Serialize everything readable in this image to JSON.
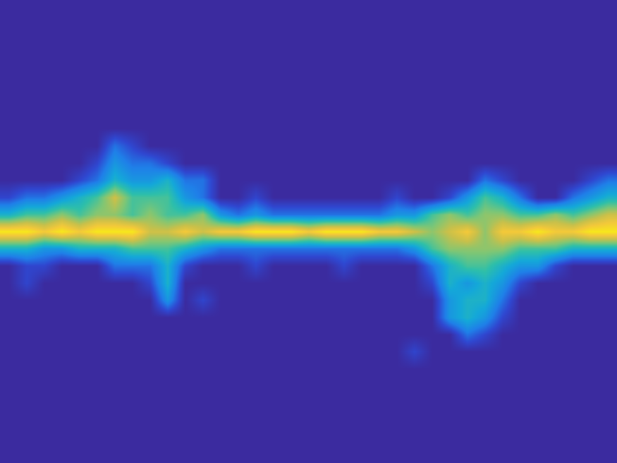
{
  "chart_data": {
    "type": "heatmap",
    "tick_labels": false,
    "zlim": [
      0,
      9
    ],
    "cells": [
      [
        0,
        0,
        0,
        0,
        0,
        0,
        0,
        0,
        0,
        0,
        0,
        0,
        0,
        0,
        0,
        0,
        0,
        0,
        0,
        0,
        0,
        0,
        0,
        0,
        0,
        0,
        0,
        0,
        0,
        0,
        0,
        0,
        0,
        0,
        0
      ],
      [
        0,
        0,
        0,
        0,
        0,
        0,
        0,
        0,
        0,
        0,
        0,
        0,
        0,
        0,
        0,
        0,
        0,
        0,
        0,
        0,
        0,
        0,
        0,
        0,
        0,
        0,
        0,
        0,
        0,
        0,
        0,
        0,
        0,
        0,
        0
      ],
      [
        0,
        0,
        0,
        0,
        0,
        0,
        0,
        0,
        0,
        0,
        0,
        0,
        0,
        0,
        0,
        0,
        0,
        0,
        0,
        0,
        0,
        0,
        0,
        0,
        0,
        0,
        0,
        0,
        0,
        0,
        0,
        0,
        0,
        0,
        0
      ],
      [
        0,
        0,
        0,
        0,
        0,
        0,
        0,
        0,
        0,
        0,
        0,
        0,
        0,
        0,
        0,
        0,
        0,
        0,
        0,
        0,
        0,
        0,
        0,
        0,
        0,
        0,
        0,
        0,
        0,
        0,
        0,
        0,
        0,
        0,
        0
      ],
      [
        0,
        0,
        0,
        0,
        0,
        0,
        0,
        0,
        0,
        0,
        0,
        0,
        0,
        0,
        0,
        0,
        0,
        0,
        0,
        0,
        0,
        0,
        0,
        0,
        0,
        0,
        0,
        0,
        0,
        0,
        0,
        0,
        0,
        0,
        0
      ],
      [
        0,
        0,
        0,
        0,
        0,
        0,
        0,
        0,
        0,
        0,
        0,
        0,
        0,
        0,
        0,
        0,
        0,
        0,
        0,
        0,
        0,
        0,
        0,
        0,
        0,
        0,
        0,
        0,
        0,
        0,
        0,
        0,
        0,
        0,
        0
      ],
      [
        0,
        0,
        0,
        0,
        0,
        0,
        0,
        0,
        0,
        0,
        0,
        0,
        0,
        0,
        0,
        0,
        0,
        0,
        0,
        0,
        0,
        0,
        0,
        0,
        0,
        0,
        0,
        0,
        0,
        0,
        0,
        0,
        0,
        0,
        0
      ],
      [
        0,
        0,
        0,
        0,
        0,
        0,
        0,
        0,
        0,
        0,
        0,
        0,
        0,
        0,
        0,
        0,
        0,
        0,
        0,
        0,
        0,
        0,
        0,
        0,
        0,
        0,
        0,
        0,
        0,
        0,
        0,
        0,
        0,
        0,
        0
      ],
      [
        0,
        0,
        0,
        0,
        0,
        0,
        2,
        1,
        0,
        0,
        0,
        0,
        0,
        0,
        0,
        0,
        0,
        0,
        0,
        0,
        0,
        0,
        0,
        0,
        0,
        0,
        0,
        0,
        0,
        0,
        0,
        0,
        0,
        0,
        0
      ],
      [
        0,
        0,
        0,
        0,
        0,
        1,
        3,
        2,
        2,
        1,
        0,
        0,
        0,
        0,
        0,
        0,
        0,
        0,
        0,
        0,
        0,
        0,
        0,
        0,
        0,
        0,
        0,
        0,
        0,
        0,
        0,
        0,
        0,
        0,
        0
      ],
      [
        0,
        0,
        0,
        0,
        1,
        2,
        4,
        3,
        3,
        4,
        2,
        2,
        0,
        0,
        0,
        0,
        0,
        0,
        0,
        0,
        0,
        0,
        0,
        0,
        0,
        0,
        0,
        2,
        1,
        0,
        0,
        0,
        0,
        1,
        2
      ],
      [
        1,
        2,
        2,
        3,
        4,
        5,
        7,
        5,
        5,
        5,
        3,
        2,
        0,
        0,
        1,
        0,
        0,
        0,
        0,
        0,
        0,
        0,
        1,
        0,
        0,
        1,
        3,
        5,
        4,
        2,
        0,
        0,
        2,
        3,
        4
      ],
      [
        4,
        5,
        5,
        6,
        5,
        6,
        6,
        5,
        6,
        5,
        5,
        6,
        3,
        2,
        3,
        2,
        2,
        2,
        2,
        2,
        2,
        2,
        3,
        3,
        5,
        6,
        5,
        6,
        6,
        5,
        5,
        6,
        5,
        6,
        7
      ],
      [
        9,
        9,
        8,
        9,
        8,
        9,
        9,
        9,
        7,
        7,
        8,
        7,
        8,
        8,
        9,
        9,
        9,
        8,
        9,
        9,
        9,
        8,
        8,
        7,
        6,
        7,
        8,
        6,
        8,
        8,
        9,
        8,
        8,
        9,
        9
      ],
      [
        4,
        4,
        3,
        3,
        4,
        4,
        4,
        5,
        5,
        5,
        4,
        3,
        2,
        2,
        2,
        2,
        2,
        2,
        2,
        2,
        2,
        2,
        2,
        3,
        5,
        6,
        6,
        6,
        6,
        5,
        5,
        5,
        4,
        4,
        4
      ],
      [
        0,
        1,
        1,
        0,
        0,
        0,
        2,
        2,
        2,
        4,
        1,
        0,
        0,
        0,
        1,
        0,
        0,
        0,
        0,
        1,
        0,
        0,
        0,
        0,
        2,
        4,
        5,
        5,
        4,
        3,
        3,
        1,
        0,
        0,
        0
      ],
      [
        0,
        1,
        0,
        0,
        0,
        0,
        0,
        0,
        1,
        4,
        0,
        0,
        0,
        0,
        0,
        0,
        0,
        0,
        0,
        0,
        0,
        0,
        0,
        0,
        1,
        4,
        3,
        4,
        3,
        1,
        0,
        0,
        0,
        0,
        0
      ],
      [
        0,
        0,
        0,
        0,
        0,
        0,
        0,
        0,
        0,
        3,
        0,
        1,
        0,
        0,
        0,
        0,
        0,
        0,
        0,
        0,
        0,
        0,
        0,
        0,
        0,
        3,
        4,
        4,
        2,
        0,
        0,
        0,
        0,
        0,
        0
      ],
      [
        0,
        0,
        0,
        0,
        0,
        0,
        0,
        0,
        0,
        0,
        0,
        0,
        0,
        0,
        0,
        0,
        0,
        0,
        0,
        0,
        0,
        0,
        0,
        0,
        0,
        3,
        4,
        3,
        1,
        0,
        0,
        0,
        0,
        0,
        0
      ],
      [
        0,
        0,
        0,
        0,
        0,
        0,
        0,
        0,
        0,
        0,
        0,
        0,
        0,
        0,
        0,
        0,
        0,
        0,
        0,
        0,
        0,
        0,
        0,
        0,
        0,
        0,
        2,
        1,
        0,
        0,
        0,
        0,
        0,
        0,
        0
      ],
      [
        0,
        0,
        0,
        0,
        0,
        0,
        0,
        0,
        0,
        0,
        0,
        0,
        0,
        0,
        0,
        0,
        0,
        0,
        0,
        0,
        0,
        0,
        0,
        1,
        0,
        0,
        0,
        0,
        0,
        0,
        0,
        0,
        0,
        0,
        0
      ],
      [
        0,
        0,
        0,
        0,
        0,
        0,
        0,
        0,
        0,
        0,
        0,
        0,
        0,
        0,
        0,
        0,
        0,
        0,
        0,
        0,
        0,
        0,
        0,
        0,
        0,
        0,
        0,
        0,
        0,
        0,
        0,
        0,
        0,
        0,
        0
      ],
      [
        0,
        0,
        0,
        0,
        0,
        0,
        0,
        0,
        0,
        0,
        0,
        0,
        0,
        0,
        0,
        0,
        0,
        0,
        0,
        0,
        0,
        0,
        0,
        0,
        0,
        0,
        0,
        0,
        0,
        0,
        0,
        0,
        0,
        0,
        0
      ],
      [
        0,
        0,
        0,
        0,
        0,
        0,
        0,
        0,
        0,
        0,
        0,
        0,
        0,
        0,
        0,
        0,
        0,
        0,
        0,
        0,
        0,
        0,
        0,
        0,
        0,
        0,
        0,
        0,
        0,
        0,
        0,
        0,
        0,
        0,
        0
      ],
      [
        0,
        0,
        0,
        0,
        0,
        0,
        0,
        0,
        0,
        0,
        0,
        0,
        0,
        0,
        0,
        0,
        0,
        0,
        0,
        0,
        0,
        0,
        0,
        0,
        0,
        0,
        0,
        0,
        0,
        0,
        0,
        0,
        0,
        0,
        0
      ],
      [
        0,
        0,
        0,
        0,
        0,
        0,
        0,
        0,
        0,
        0,
        0,
        0,
        0,
        0,
        0,
        0,
        0,
        0,
        0,
        0,
        0,
        0,
        0,
        0,
        0,
        0,
        0,
        0,
        0,
        0,
        0,
        0,
        0,
        0,
        0
      ],
      [
        0,
        0,
        0,
        0,
        0,
        0,
        0,
        0,
        0,
        0,
        0,
        0,
        0,
        0,
        0,
        0,
        0,
        0,
        0,
        0,
        0,
        0,
        0,
        0,
        0,
        0,
        0,
        0,
        0,
        0,
        0,
        0,
        0,
        0,
        0
      ]
    ]
  }
}
